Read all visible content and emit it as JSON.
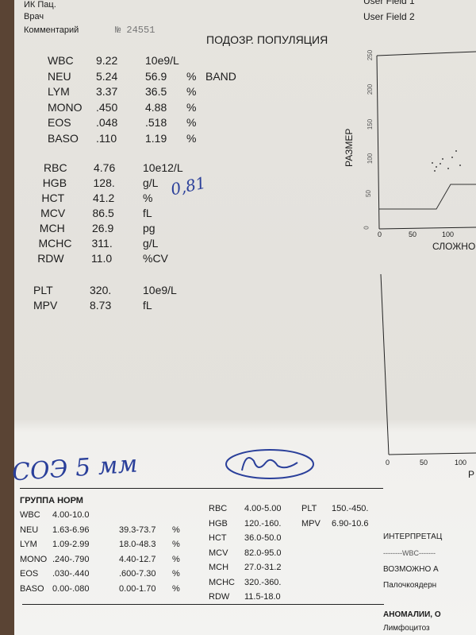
{
  "header": {
    "patient_id_label": "ИК Пац.",
    "doctor_label": "Врач",
    "comment_label": "Комментарий",
    "comment_value": "№ 24551",
    "user_field_1": "User Field 1",
    "user_field_2": "User Field 2",
    "suspect_title": "ПОДОЗР. ПОПУЛЯЦИЯ"
  },
  "wbc_results": [
    {
      "name": "WBC",
      "value": "9.22",
      "pct": "10e9/L",
      "unit": "",
      "flag": ""
    },
    {
      "name": "NEU",
      "value": "5.24",
      "pct": "56.9",
      "unit": "%",
      "flag": "BAND"
    },
    {
      "name": "LYM",
      "value": "3.37",
      "pct": "36.5",
      "unit": "%",
      "flag": ""
    },
    {
      "name": "MONO",
      "value": ".450",
      "pct": "4.88",
      "unit": "%",
      "flag": ""
    },
    {
      "name": "EOS",
      "value": ".048",
      "pct": ".518",
      "unit": "%",
      "flag": ""
    },
    {
      "name": "BASO",
      "value": ".110",
      "pct": "1.19",
      "unit": "%",
      "flag": ""
    }
  ],
  "rbc_results": [
    {
      "name": "RBC",
      "value": "4.76",
      "unit": "10e12/L"
    },
    {
      "name": "HGB",
      "value": "128.",
      "unit": "g/L"
    },
    {
      "name": "HCT",
      "value": "41.2",
      "unit": "%"
    },
    {
      "name": "MCV",
      "value": "86.5",
      "unit": "fL"
    },
    {
      "name": "MCH",
      "value": "26.9",
      "unit": "pg"
    },
    {
      "name": "MCHC",
      "value": "311.",
      "unit": "g/L"
    },
    {
      "name": "RDW",
      "value": "11.0",
      "unit": "%CV"
    }
  ],
  "plt_results": [
    {
      "name": "PLT",
      "value": "320.",
      "unit": "10e9/L"
    },
    {
      "name": "MPV",
      "value": "8.73",
      "unit": "fL"
    }
  ],
  "handwriting": {
    "note_hct": "0,81",
    "esr": "СОЭ 5 мм"
  },
  "scatter": {
    "ylabel": "РАЗМЕР",
    "xlabel": "СЛОЖНО",
    "yticks": [
      "0",
      "50",
      "100",
      "150",
      "200",
      "250"
    ],
    "xticks": [
      "0",
      "50",
      "100"
    ]
  },
  "histogram": {
    "xlabel": "Р",
    "xticks": [
      "0",
      "50",
      "100"
    ]
  },
  "norms": {
    "title": "ГРУППА НОРМ",
    "wbc": [
      {
        "name": "WBC",
        "abs": "4.00-10.0",
        "pct": "",
        "unit": ""
      },
      {
        "name": "NEU",
        "abs": "1.63-6.96",
        "pct": "39.3-73.7",
        "unit": "%"
      },
      {
        "name": "LYM",
        "abs": "1.09-2.99",
        "pct": "18.0-48.3",
        "unit": "%"
      },
      {
        "name": "MONO",
        "abs": ".240-.790",
        "pct": "4.40-12.7",
        "unit": "%"
      },
      {
        "name": "EOS",
        "abs": ".030-.440",
        "pct": ".600-7.30",
        "unit": "%"
      },
      {
        "name": "BASO",
        "abs": "0.00-.080",
        "pct": "0.00-1.70",
        "unit": "%"
      }
    ],
    "rbc": [
      {
        "name": "RBC",
        "range": "4.00-5.00"
      },
      {
        "name": "HGB",
        "range": "120.-160."
      },
      {
        "name": "HCT",
        "range": "36.0-50.0"
      },
      {
        "name": "MCV",
        "range": "82.0-95.0"
      },
      {
        "name": "MCH",
        "range": "27.0-31.2"
      },
      {
        "name": "MCHC",
        "range": "320.-360."
      },
      {
        "name": "RDW",
        "range": "11.5-18.0"
      }
    ],
    "plt": [
      {
        "name": "PLT",
        "range": "150.-450."
      },
      {
        "name": "MPV",
        "range": "6.90-10.6"
      }
    ]
  },
  "interpretation": {
    "title": "ИНТЕРПРЕТАЦ",
    "wbc_sep": "--------WBC-------",
    "possible": "ВОЗМОЖНО А",
    "band": "Палочкоядерн",
    "anomalies": "АНОМАЛИИ, О",
    "lymph": "Лимфоцитоз"
  }
}
